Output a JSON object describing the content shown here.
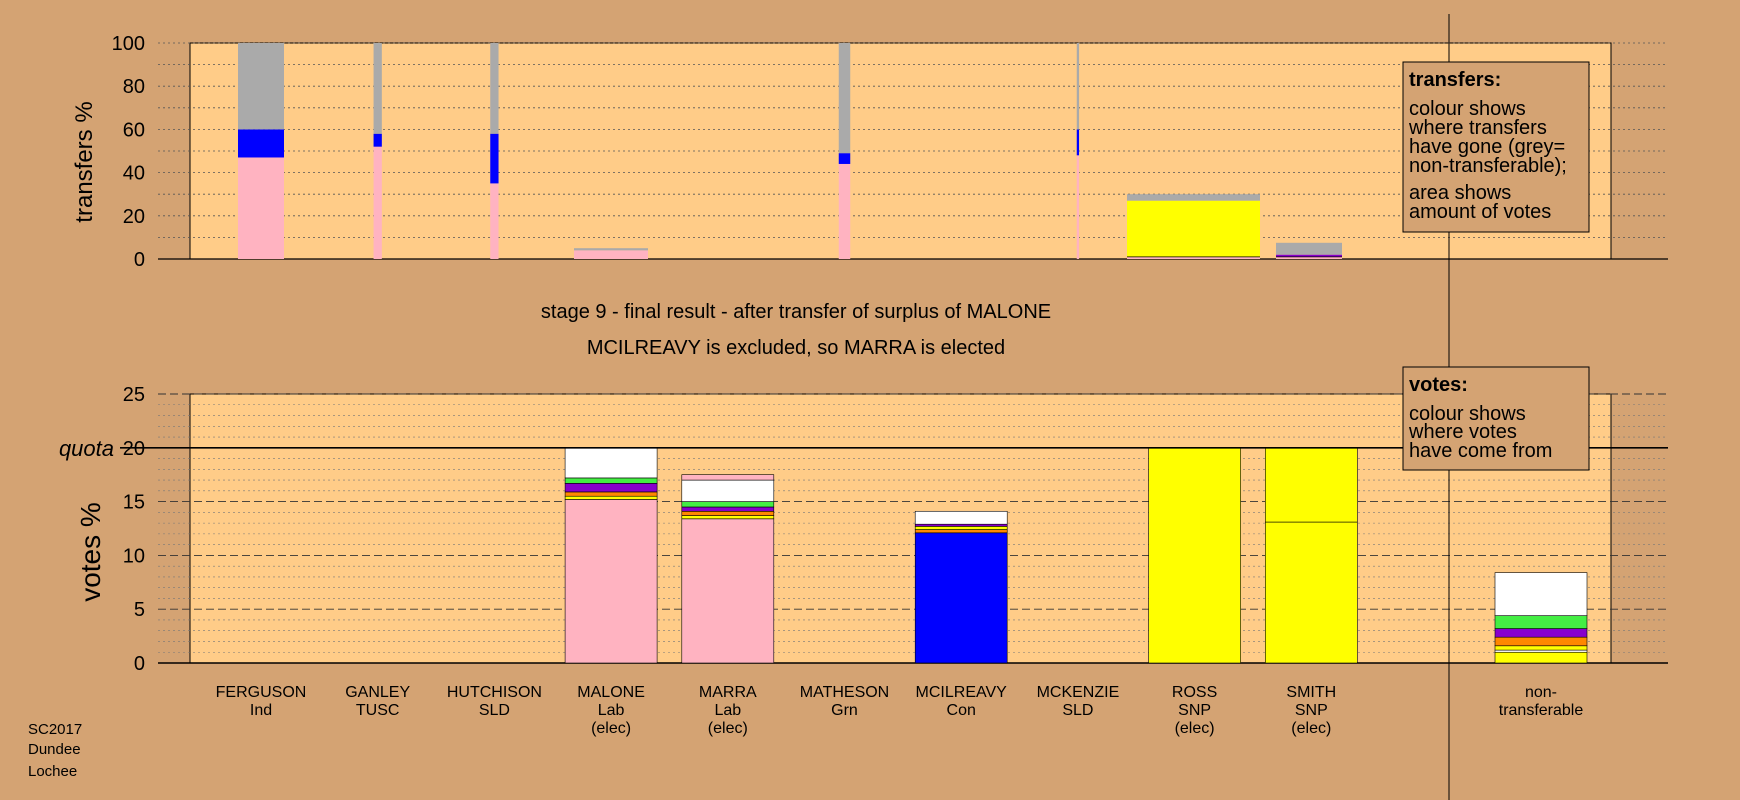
{
  "chart_data": [
    {
      "type": "bar",
      "ylabel": "transfers %",
      "ylim": [
        0,
        100
      ],
      "yticks": [
        0,
        20,
        40,
        60,
        80,
        100
      ],
      "grid": true,
      "columns": [
        {
          "name": "FERGUSON",
          "width_pct": 100,
          "segments": [
            {
              "color": "#ffb3c1",
              "value": 47
            },
            {
              "color": "#0000ff",
              "value": 13
            },
            {
              "color": "#aaaaaa",
              "value": 40
            }
          ]
        },
        {
          "name": "GANLEY",
          "width_pct": 18,
          "segments": [
            {
              "color": "#ffb3c1",
              "value": 52
            },
            {
              "color": "#0000ff",
              "value": 6
            },
            {
              "color": "#aaaaaa",
              "value": 42
            }
          ]
        },
        {
          "name": "HUTCHISON",
          "width_pct": 18,
          "segments": [
            {
              "color": "#ffb3c1",
              "value": 35
            },
            {
              "color": "#0000ff",
              "value": 23
            },
            {
              "color": "#aaaaaa",
              "value": 42
            }
          ]
        },
        {
          "name": "MALONE",
          "width_pct": 0,
          "segments": []
        },
        {
          "name": "MARRA",
          "width_pct": 0,
          "segments": []
        },
        {
          "name": "MATHESON",
          "width_pct": 25,
          "segments": [
            {
              "color": "#ffb3c1",
              "value": 44
            },
            {
              "color": "#0000ff",
              "value": 5
            },
            {
              "color": "#aaaaaa",
              "value": 51
            }
          ]
        },
        {
          "name": "MCILREAVY",
          "width_pct": 0,
          "segments": []
        },
        {
          "name": "MCKENZIE",
          "width_pct": 5,
          "segments": [
            {
              "color": "#ffb3c1",
              "value": 48
            },
            {
              "color": "#0000ff",
              "value": 12
            },
            {
              "color": "#aaaaaa",
              "value": 40
            }
          ]
        }
      ],
      "nontransferable_stage": {
        "x_start": "MALONE",
        "x_end": "MATHESON",
        "segments": [
          {
            "color": "#ffb3c1",
            "value": 4
          },
          {
            "color": "#aaaaaa",
            "value": 1
          }
        ]
      },
      "wide_columns": [
        {
          "name": "ROSS",
          "segments": [
            {
              "color": "#ffb3c1",
              "value": 1
            },
            {
              "color": "#ffff00",
              "value": 26
            },
            {
              "color": "#aaaaaa",
              "value": 3
            }
          ]
        },
        {
          "name": "SMITH",
          "segments": [
            {
              "color": "#ffb3c1",
              "value": 1
            },
            {
              "color": "#8800cc",
              "value": 1
            },
            {
              "color": "#aaaaaa",
              "value": 5.5
            }
          ]
        }
      ]
    },
    {
      "type": "bar",
      "ylabel": "votes %",
      "ylim": [
        0,
        25
      ],
      "yticks": [
        0,
        5,
        10,
        15,
        20,
        25
      ],
      "quota": 20,
      "quota_label": "quota",
      "grid": true,
      "categories": [
        "FERGUSON",
        "GANLEY",
        "HUTCHISON",
        "MALONE",
        "MARRA",
        "MATHESON",
        "MCILREAVY",
        "MCKENZIE",
        "ROSS",
        "SMITH",
        "non-transferable"
      ],
      "series_stacks": [
        {
          "name": "FERGUSON",
          "segments": []
        },
        {
          "name": "GANLEY",
          "segments": []
        },
        {
          "name": "HUTCHISON",
          "segments": []
        },
        {
          "name": "MALONE",
          "segments": [
            {
              "color": "#ffb3c1",
              "value": 15.2
            },
            {
              "color": "#ffff00",
              "value": 0.3
            },
            {
              "color": "#ff8800",
              "value": 0.4
            },
            {
              "color": "#8800cc",
              "value": 0.8
            },
            {
              "color": "#44ee44",
              "value": 0.5
            },
            {
              "color": "#ffffff",
              "value": 2.8
            }
          ]
        },
        {
          "name": "MARRA",
          "segments": [
            {
              "color": "#ffb3c1",
              "value": 13.4
            },
            {
              "color": "#ffff00",
              "value": 0.3
            },
            {
              "color": "#ff8800",
              "value": 0.4
            },
            {
              "color": "#8800cc",
              "value": 0.4
            },
            {
              "color": "#44ee44",
              "value": 0.5
            },
            {
              "color": "#ffffff",
              "value": 2.0
            },
            {
              "color": "#ffb3c1",
              "value": 0.5
            }
          ]
        },
        {
          "name": "MATHESON",
          "segments": []
        },
        {
          "name": "MCILREAVY",
          "segments": [
            {
              "color": "#0000ff",
              "value": 12.1
            },
            {
              "color": "#ff8800",
              "value": 0.3
            },
            {
              "color": "#ffff00",
              "value": 0.3
            },
            {
              "color": "#8800cc",
              "value": 0.2
            },
            {
              "color": "#ffffff",
              "value": 1.2
            }
          ]
        },
        {
          "name": "MCKENZIE",
          "segments": []
        },
        {
          "name": "ROSS",
          "segments": [
            {
              "color": "#ffff00",
              "value": 20
            }
          ]
        },
        {
          "name": "SMITH",
          "segments": [
            {
              "color": "#ffff00",
              "value": 13.1
            },
            {
              "color": "#ffff00",
              "value": 6.9
            }
          ]
        },
        {
          "name": "non-transferable",
          "segments": [
            {
              "color": "#ffff00",
              "value": 1.0
            },
            {
              "color": "#ffffff",
              "value": 0.2
            },
            {
              "color": "#ffff00",
              "value": 0.4
            },
            {
              "color": "#ff8800",
              "value": 0.8
            },
            {
              "color": "#8800cc",
              "value": 0.8
            },
            {
              "color": "#44ee44",
              "value": 1.2
            },
            {
              "color": "#ffffff",
              "value": 4.0
            }
          ]
        }
      ]
    }
  ],
  "top_axis_label": "transfers %",
  "bottom_axis_label": "votes %",
  "stage_title": "stage 9 - final result - after transfer of surplus of MALONE",
  "stage_subtitle": "MCILREAVY is excluded, so MARRA is elected",
  "candidates": [
    {
      "name": "FERGUSON",
      "party": "Ind",
      "status": ""
    },
    {
      "name": "GANLEY",
      "party": "TUSC",
      "status": ""
    },
    {
      "name": "HUTCHISON",
      "party": "SLD",
      "status": ""
    },
    {
      "name": "MALONE",
      "party": "Lab",
      "status": "(elec)"
    },
    {
      "name": "MARRA",
      "party": "Lab",
      "status": "(elec)"
    },
    {
      "name": "MATHESON",
      "party": "Grn",
      "status": ""
    },
    {
      "name": "MCILREAVY",
      "party": "Con",
      "status": ""
    },
    {
      "name": "MCKENZIE",
      "party": "SLD",
      "status": ""
    },
    {
      "name": "ROSS",
      "party": "SNP",
      "status": "(elec)"
    },
    {
      "name": "SMITH",
      "party": "SNP",
      "status": "(elec)"
    }
  ],
  "nontransferable_label": [
    "non-",
    "transferable"
  ],
  "legend_transfers": {
    "title": "transfers:",
    "lines": [
      "colour shows",
      "where transfers",
      "have gone (grey=",
      "non-transferable);",
      "area shows",
      "amount of votes"
    ]
  },
  "legend_votes": {
    "title": "votes:",
    "lines": [
      "colour shows",
      "where votes",
      "have come from"
    ]
  },
  "footer": [
    "SC2017",
    "Dundee",
    "Lochee"
  ],
  "colors": {
    "background": "#d4a373",
    "plot": "#ffcc88",
    "quota_line": "#000000"
  }
}
